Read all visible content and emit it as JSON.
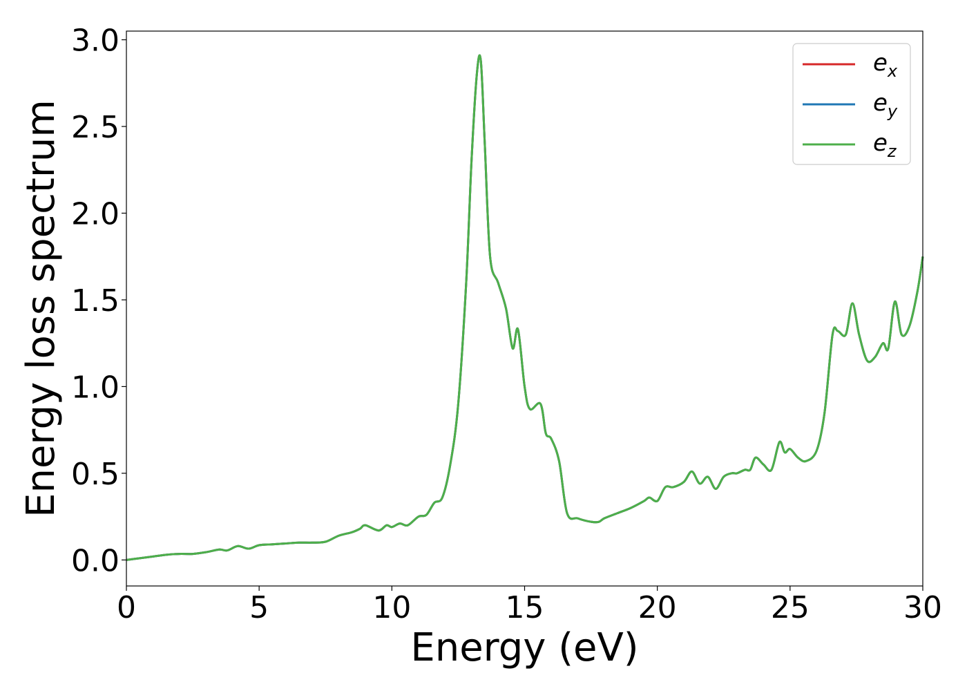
{
  "chart_data": {
    "type": "line",
    "title": "",
    "xlabel": "Energy (eV)",
    "ylabel": "Energy loss spectrum",
    "xlim": [
      0,
      30
    ],
    "ylim": [
      -0.15,
      3.05
    ],
    "xticks": [
      0,
      5,
      10,
      15,
      20,
      25,
      30
    ],
    "xtick_labels": [
      "0",
      "5",
      "10",
      "15",
      "20",
      "25",
      "30"
    ],
    "yticks": [
      0.0,
      0.5,
      1.0,
      1.5,
      2.0,
      2.5,
      3.0
    ],
    "ytick_labels": [
      "0.0",
      "0.5",
      "1.0",
      "1.5",
      "2.0",
      "2.5",
      "3.0"
    ],
    "grid": false,
    "legend_position": "top-right",
    "x": [
      0,
      0.5,
      1,
      1.5,
      2,
      2.5,
      3,
      3.5,
      3.8,
      4.2,
      4.6,
      5,
      5.5,
      6,
      6.5,
      7,
      7.5,
      8,
      8.5,
      8.8,
      9,
      9.5,
      9.8,
      10,
      10.3,
      10.6,
      11,
      11.3,
      11.6,
      11.9,
      12.2,
      12.5,
      12.8,
      13,
      13.2,
      13.35,
      13.5,
      13.7,
      14,
      14.3,
      14.55,
      14.75,
      15,
      15.2,
      15.6,
      15.8,
      16,
      16.3,
      16.6,
      17,
      17.5,
      17.8,
      18,
      18.5,
      19,
      19.5,
      19.7,
      20,
      20.3,
      20.6,
      21,
      21.3,
      21.6,
      21.9,
      22.2,
      22.5,
      22.8,
      23,
      23.3,
      23.5,
      23.7,
      24,
      24.3,
      24.6,
      24.8,
      25,
      25.3,
      25.6,
      26,
      26.3,
      26.6,
      26.8,
      27.1,
      27.35,
      27.6,
      27.9,
      28.2,
      28.5,
      28.7,
      28.95,
      29.2,
      29.5,
      29.8,
      30
    ],
    "series": [
      {
        "name": "ex",
        "color": "#d62728",
        "values": [
          0.0,
          0.01,
          0.02,
          0.03,
          0.035,
          0.035,
          0.045,
          0.06,
          0.055,
          0.08,
          0.065,
          0.085,
          0.09,
          0.095,
          0.1,
          0.1,
          0.105,
          0.14,
          0.16,
          0.18,
          0.2,
          0.17,
          0.2,
          0.19,
          0.21,
          0.2,
          0.25,
          0.26,
          0.33,
          0.36,
          0.55,
          0.9,
          1.6,
          2.3,
          2.8,
          2.88,
          2.4,
          1.75,
          1.6,
          1.45,
          1.22,
          1.33,
          1.0,
          0.87,
          0.9,
          0.73,
          0.7,
          0.57,
          0.27,
          0.24,
          0.22,
          0.22,
          0.24,
          0.27,
          0.3,
          0.34,
          0.36,
          0.34,
          0.42,
          0.42,
          0.45,
          0.51,
          0.44,
          0.48,
          0.41,
          0.48,
          0.5,
          0.5,
          0.52,
          0.52,
          0.59,
          0.55,
          0.52,
          0.68,
          0.62,
          0.64,
          0.59,
          0.57,
          0.63,
          0.85,
          1.3,
          1.32,
          1.3,
          1.48,
          1.3,
          1.15,
          1.17,
          1.25,
          1.22,
          1.49,
          1.3,
          1.35,
          1.55,
          1.75
        ]
      },
      {
        "name": "ey",
        "color": "#1f77b4",
        "values": [
          0.0,
          0.01,
          0.02,
          0.03,
          0.035,
          0.035,
          0.045,
          0.06,
          0.055,
          0.08,
          0.065,
          0.085,
          0.09,
          0.095,
          0.1,
          0.1,
          0.105,
          0.14,
          0.16,
          0.18,
          0.2,
          0.17,
          0.2,
          0.19,
          0.21,
          0.2,
          0.25,
          0.26,
          0.33,
          0.36,
          0.55,
          0.9,
          1.6,
          2.3,
          2.8,
          2.88,
          2.4,
          1.75,
          1.6,
          1.45,
          1.22,
          1.33,
          1.0,
          0.87,
          0.9,
          0.73,
          0.7,
          0.57,
          0.27,
          0.24,
          0.22,
          0.22,
          0.24,
          0.27,
          0.3,
          0.34,
          0.36,
          0.34,
          0.42,
          0.42,
          0.45,
          0.51,
          0.44,
          0.48,
          0.41,
          0.48,
          0.5,
          0.5,
          0.52,
          0.52,
          0.59,
          0.55,
          0.52,
          0.68,
          0.62,
          0.64,
          0.59,
          0.57,
          0.63,
          0.85,
          1.3,
          1.32,
          1.3,
          1.48,
          1.3,
          1.15,
          1.17,
          1.25,
          1.22,
          1.49,
          1.3,
          1.35,
          1.55,
          1.75
        ]
      },
      {
        "name": "ez",
        "color": "#4daf4a",
        "values": [
          0.0,
          0.01,
          0.02,
          0.03,
          0.035,
          0.035,
          0.045,
          0.06,
          0.055,
          0.08,
          0.065,
          0.085,
          0.09,
          0.095,
          0.1,
          0.1,
          0.105,
          0.14,
          0.16,
          0.18,
          0.2,
          0.17,
          0.2,
          0.19,
          0.21,
          0.2,
          0.25,
          0.26,
          0.33,
          0.36,
          0.55,
          0.9,
          1.6,
          2.3,
          2.8,
          2.88,
          2.4,
          1.75,
          1.6,
          1.45,
          1.22,
          1.33,
          1.0,
          0.87,
          0.9,
          0.73,
          0.7,
          0.57,
          0.27,
          0.24,
          0.22,
          0.22,
          0.24,
          0.27,
          0.3,
          0.34,
          0.36,
          0.34,
          0.42,
          0.42,
          0.45,
          0.51,
          0.44,
          0.48,
          0.41,
          0.48,
          0.5,
          0.5,
          0.52,
          0.52,
          0.59,
          0.55,
          0.52,
          0.68,
          0.62,
          0.64,
          0.59,
          0.57,
          0.63,
          0.85,
          1.3,
          1.32,
          1.3,
          1.48,
          1.3,
          1.15,
          1.17,
          1.25,
          1.22,
          1.49,
          1.3,
          1.35,
          1.55,
          1.75
        ]
      }
    ],
    "legend": [
      {
        "base": "e",
        "sub": "x",
        "color": "#d62728"
      },
      {
        "base": "e",
        "sub": "y",
        "color": "#1f77b4"
      },
      {
        "base": "e",
        "sub": "z",
        "color": "#4daf4a"
      }
    ]
  }
}
